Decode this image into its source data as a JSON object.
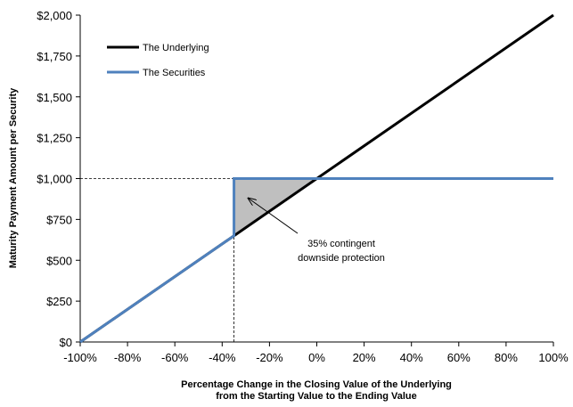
{
  "chart_data": {
    "type": "line",
    "xlabel": [
      "Percentage Change in the Closing Value of the Underlying",
      "from the Starting Value to the Ending Value"
    ],
    "ylabel": "Maturity Payment Amount per Security",
    "xlim": [
      -100,
      100
    ],
    "ylim": [
      0,
      2000
    ],
    "x_ticks": [
      -100,
      -80,
      -60,
      -40,
      -20,
      0,
      20,
      40,
      60,
      80,
      100
    ],
    "x_tick_labels": [
      "-100%",
      "-80%",
      "-60%",
      "-40%",
      "-20%",
      "0%",
      "20%",
      "40%",
      "60%",
      "80%",
      "100%"
    ],
    "y_ticks": [
      0,
      250,
      500,
      750,
      1000,
      1250,
      1500,
      1750,
      2000
    ],
    "y_tick_labels": [
      "$0",
      "$250",
      "$500",
      "$750",
      "$1,000",
      "$1,250",
      "$1,500",
      "$1,750",
      "$2,000"
    ],
    "grid": false,
    "legend_position": "top-left",
    "series": [
      {
        "name": "The Underlying",
        "color": "#000000",
        "x": [
          -100,
          100
        ],
        "y": [
          0,
          2000
        ]
      },
      {
        "name": "The Securities",
        "color": "#4f81bd",
        "x": [
          -100,
          -35,
          -35,
          100
        ],
        "y": [
          0,
          650,
          1000,
          1000
        ]
      }
    ],
    "reference_lines": [
      {
        "style": "dashed",
        "color": "#000000",
        "x": [
          -100,
          -35
        ],
        "y": [
          1000,
          1000
        ]
      },
      {
        "style": "dashed",
        "color": "#000000",
        "x": [
          -35,
          -35
        ],
        "y": [
          0,
          1000
        ]
      }
    ],
    "shaded_region": {
      "color": "#bfbfbf",
      "x": [
        -35,
        -35,
        0
      ],
      "y": [
        650,
        1000,
        1000
      ]
    },
    "annotation": {
      "lines": [
        "35% contingent",
        "downside protection"
      ],
      "arrow_to": [
        -29,
        880
      ]
    }
  }
}
